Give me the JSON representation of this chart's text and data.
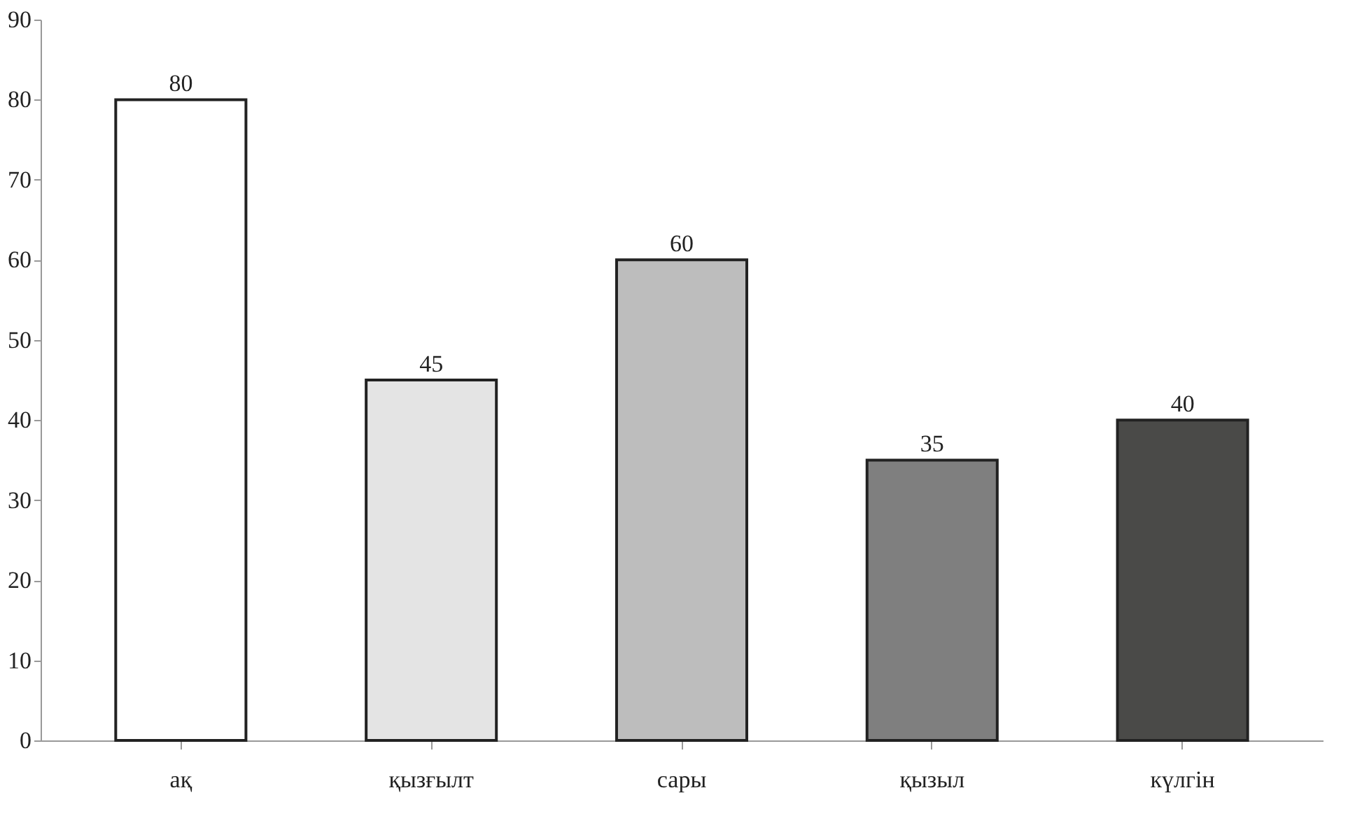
{
  "chart_data": {
    "type": "bar",
    "categories": [
      "ақ",
      "қызғылт",
      "сары",
      "қызыл",
      "күлгін"
    ],
    "values": [
      80,
      45,
      60,
      35,
      40
    ],
    "colors": [
      "#ffffff",
      "#e4e4e4",
      "#bdbdbd",
      "#7f7f7f",
      "#4a4a48"
    ],
    "ylim": [
      0,
      90
    ],
    "yticks": [
      0,
      10,
      20,
      30,
      40,
      50,
      60,
      70,
      80,
      90
    ],
    "data_labels": true,
    "grid": false
  }
}
